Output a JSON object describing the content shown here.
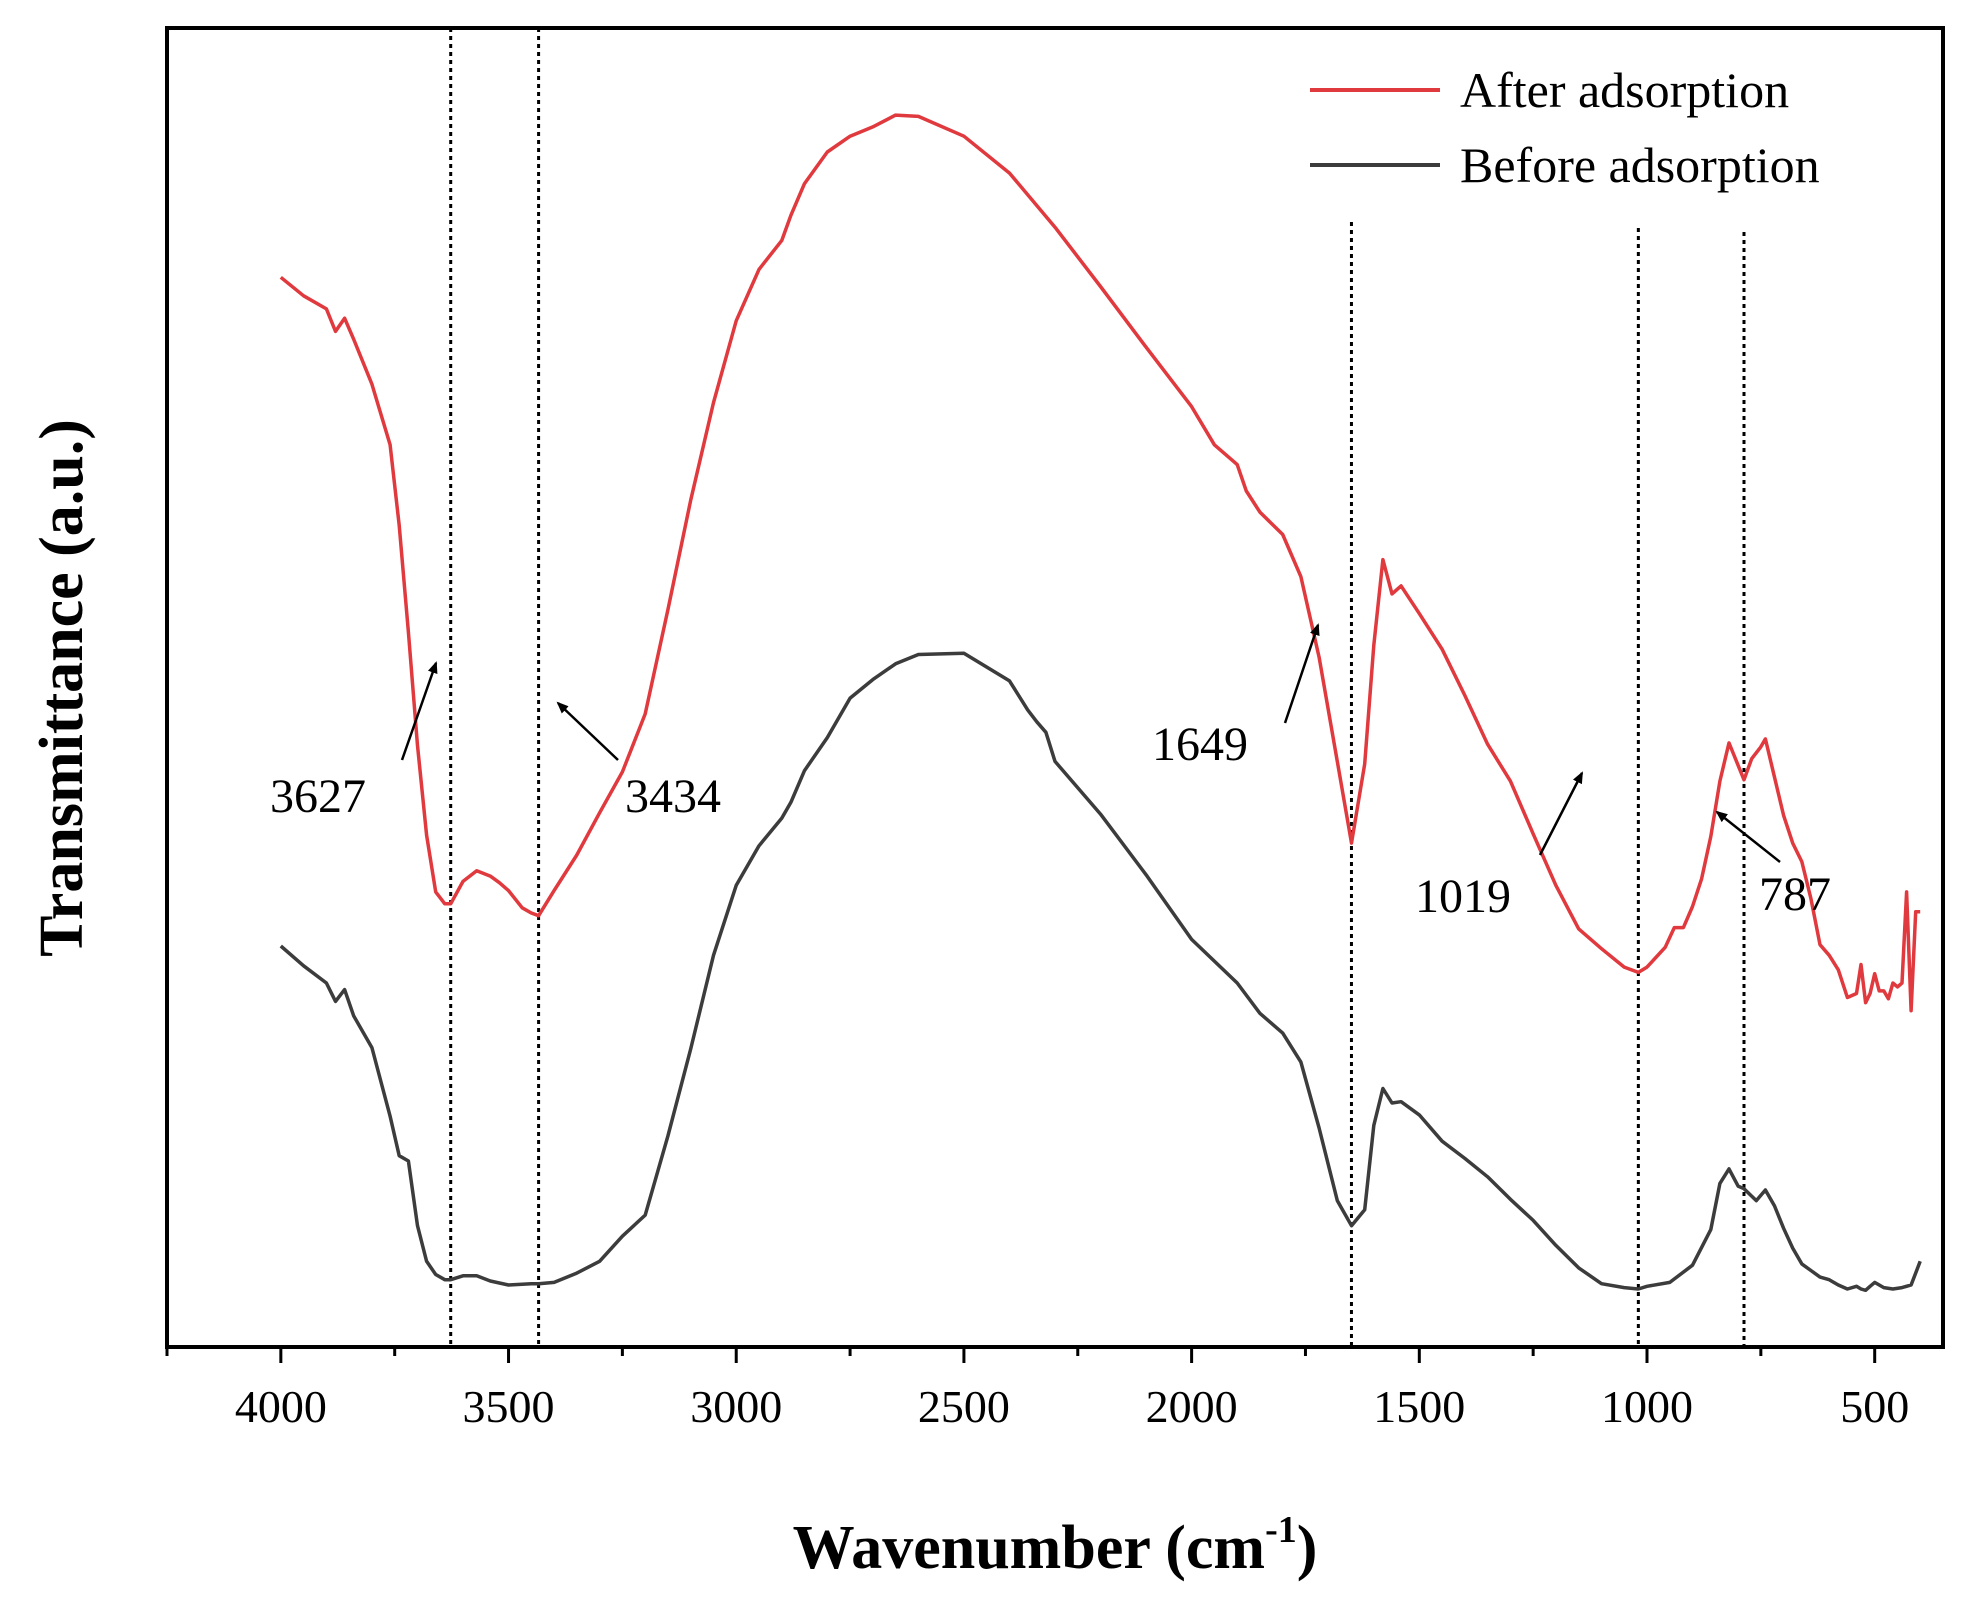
{
  "chart_data": {
    "type": "line",
    "title": "",
    "xlabel": "Wavenumber",
    "xlabel_unit_base": "cm",
    "xlabel_unit_exp": "-1",
    "ylabel": "Transmittance (a.u.)",
    "xlim": [
      4250,
      350
    ],
    "x_reversed": true,
    "ylim": [
      0,
      100
    ],
    "grid": false,
    "legend_position": "top-right",
    "x_ticks": [
      4000,
      3500,
      3000,
      2500,
      2000,
      1500,
      1000,
      500
    ],
    "x_tick_labels": [
      "4000",
      "3500",
      "3000",
      "2500",
      "2000",
      "1500",
      "1000",
      "500"
    ],
    "series": [
      {
        "name": "After adsorption",
        "color": "#e0393e",
        "x": [
          4000,
          3950,
          3900,
          3880,
          3860,
          3840,
          3800,
          3760,
          3740,
          3720,
          3700,
          3680,
          3660,
          3640,
          3627,
          3600,
          3570,
          3540,
          3520,
          3500,
          3470,
          3450,
          3434,
          3400,
          3350,
          3300,
          3250,
          3200,
          3150,
          3100,
          3050,
          3000,
          2950,
          2900,
          2880,
          2850,
          2800,
          2750,
          2700,
          2650,
          2600,
          2500,
          2400,
          2300,
          2200,
          2100,
          2000,
          1950,
          1900,
          1880,
          1850,
          1800,
          1760,
          1720,
          1680,
          1649,
          1620,
          1600,
          1580,
          1560,
          1540,
          1500,
          1450,
          1400,
          1350,
          1300,
          1250,
          1200,
          1150,
          1100,
          1050,
          1019,
          1000,
          960,
          940,
          920,
          900,
          880,
          860,
          840,
          820,
          800,
          787,
          770,
          750,
          740,
          720,
          700,
          680,
          660,
          640,
          620,
          600,
          580,
          560,
          540,
          530,
          520,
          510,
          500,
          490,
          480,
          470,
          460,
          450,
          440,
          430,
          420,
          410,
          400
        ],
        "values": [
          81.1,
          79.7,
          78.7,
          77.0,
          78.0,
          76.4,
          73.0,
          68.4,
          62.3,
          54.2,
          45.6,
          38.8,
          34.5,
          33.6,
          33.6,
          35.3,
          36.1,
          35.7,
          35.2,
          34.6,
          33.3,
          32.9,
          32.7,
          34.6,
          37.3,
          40.5,
          43.6,
          48.0,
          55.9,
          64.2,
          71.6,
          77.8,
          81.7,
          83.9,
          85.8,
          88.2,
          90.6,
          91.8,
          92.5,
          93.4,
          93.3,
          91.8,
          89.0,
          84.9,
          80.4,
          75.8,
          71.3,
          68.4,
          66.9,
          64.9,
          63.3,
          61.6,
          58.4,
          52.3,
          44.4,
          38.2,
          44.2,
          53.2,
          59.7,
          57.1,
          57.7,
          55.6,
          52.9,
          49.4,
          45.7,
          42.9,
          38.9,
          35.0,
          31.7,
          30.2,
          28.8,
          28.4,
          28.8,
          30.3,
          31.8,
          31.8,
          33.4,
          35.5,
          38.7,
          42.9,
          45.8,
          44.1,
          43.0,
          44.6,
          45.5,
          46.1,
          43.2,
          40.3,
          38.2,
          36.8,
          34.0,
          30.5,
          29.7,
          28.6,
          26.5,
          26.8,
          29.0,
          26.1,
          26.8,
          28.3,
          27.0,
          27.0,
          26.4,
          27.6,
          27.3,
          27.6,
          34.5,
          25.5,
          33.0,
          33.0
        ]
      },
      {
        "name": "Before adsorption",
        "color": "#3c3c3c",
        "x": [
          4000,
          3950,
          3900,
          3880,
          3860,
          3840,
          3800,
          3760,
          3740,
          3720,
          3700,
          3680,
          3660,
          3640,
          3627,
          3600,
          3570,
          3540,
          3500,
          3450,
          3434,
          3400,
          3350,
          3300,
          3250,
          3200,
          3150,
          3100,
          3050,
          3000,
          2950,
          2900,
          2880,
          2850,
          2800,
          2750,
          2700,
          2650,
          2600,
          2500,
          2400,
          2360,
          2340,
          2320,
          2300,
          2200,
          2100,
          2000,
          1900,
          1850,
          1800,
          1760,
          1720,
          1680,
          1649,
          1620,
          1600,
          1580,
          1560,
          1540,
          1500,
          1450,
          1400,
          1350,
          1300,
          1250,
          1200,
          1150,
          1100,
          1050,
          1019,
          1000,
          950,
          900,
          860,
          840,
          820,
          800,
          787,
          760,
          740,
          720,
          700,
          680,
          660,
          640,
          620,
          600,
          580,
          560,
          540,
          530,
          520,
          510,
          500,
          480,
          460,
          440,
          420,
          400
        ],
        "values": [
          30.4,
          28.9,
          27.6,
          26.2,
          27.1,
          25.1,
          22.7,
          17.5,
          14.5,
          14.1,
          9.2,
          6.5,
          5.5,
          5.1,
          5.1,
          5.4,
          5.4,
          5.0,
          4.7,
          4.8,
          4.8,
          4.9,
          5.6,
          6.5,
          8.4,
          10.0,
          16.0,
          22.6,
          29.7,
          35.0,
          38.0,
          40.1,
          41.3,
          43.7,
          46.2,
          49.2,
          50.6,
          51.8,
          52.5,
          52.6,
          50.5,
          48.3,
          47.4,
          46.6,
          44.4,
          40.4,
          35.8,
          30.9,
          27.6,
          25.3,
          23.8,
          21.6,
          16.6,
          11.1,
          9.2,
          10.4,
          16.8,
          19.6,
          18.5,
          18.6,
          17.6,
          15.6,
          14.3,
          12.9,
          11.2,
          9.6,
          7.7,
          6.0,
          4.8,
          4.5,
          4.4,
          4.6,
          4.9,
          6.2,
          8.9,
          12.4,
          13.5,
          12.2,
          12.0,
          11.1,
          11.9,
          10.7,
          9.0,
          7.5,
          6.3,
          5.8,
          5.3,
          5.1,
          4.7,
          4.4,
          4.6,
          4.4,
          4.3,
          4.6,
          4.9,
          4.5,
          4.4,
          4.5,
          4.7,
          6.5
        ]
      }
    ],
    "reference_lines": [
      3627,
      3434,
      1649,
      1019,
      787
    ],
    "annotations": [
      {
        "text": "3627",
        "x": 3627
      },
      {
        "text": "3434",
        "x": 3434
      },
      {
        "text": "1649",
        "x": 1649
      },
      {
        "text": "1019",
        "x": 1019
      },
      {
        "text": "787",
        "x": 787
      }
    ]
  }
}
